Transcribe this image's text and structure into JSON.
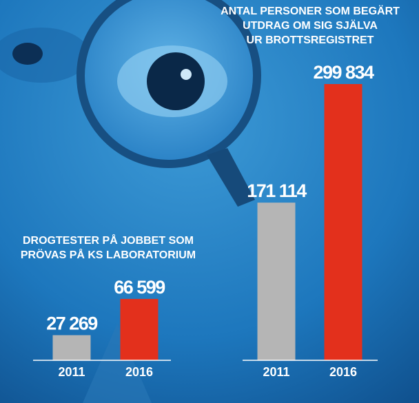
{
  "chart_data": [
    {
      "type": "bar",
      "title": [
        "DROGTESTER PÅ JOBBET SOM",
        "PRÖVAS PÅ KS LABORATORIUM"
      ],
      "categories": [
        "2011",
        "2016"
      ],
      "values": [
        27269,
        66599
      ],
      "value_labels": [
        "27 269",
        "66 599"
      ],
      "colors": [
        "#b5b5b5",
        "#e3301c"
      ]
    },
    {
      "type": "bar",
      "title": [
        "ANTAL PERSONER SOM BEGÄRT",
        "UTDRAG OM SIG SJÄLVA",
        "UR BROTTSREGISTRET"
      ],
      "categories": [
        "2011",
        "2016"
      ],
      "values": [
        171114,
        299834
      ],
      "value_labels": [
        "171 114",
        "299 834"
      ],
      "colors": [
        "#b5b5b5",
        "#e3301c"
      ]
    }
  ]
}
